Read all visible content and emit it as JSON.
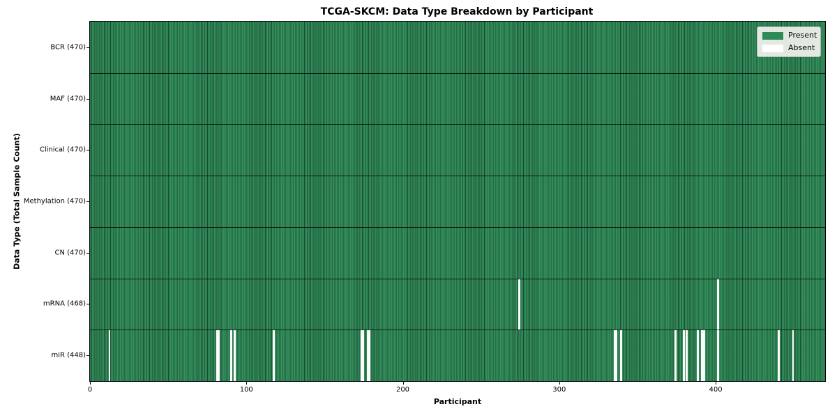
{
  "title": "TCGA-SKCM: Data Type Breakdown by Participant",
  "chart_data": {
    "type": "heatmap",
    "title": "TCGA-SKCM: Data Type Breakdown by Participant",
    "xlabel": "Participant",
    "ylabel": "Data Type (Total Sample Count)",
    "n_participants": 470,
    "x_ticks": [
      0,
      100,
      200,
      300,
      400
    ],
    "grid": false,
    "legend_position": "upper right",
    "legend": [
      {
        "label": "Present",
        "color": "#2e8b57"
      },
      {
        "label": "Absent",
        "color": "#ffffff"
      }
    ],
    "colors": {
      "present": "#2e8b57",
      "absent": "#fbfbfb",
      "cell_edge": "rgba(0,0,0,0.45)",
      "row_separator": "#0a0f0a"
    },
    "rows": [
      {
        "label": "BCR (470)",
        "data_type": "BCR",
        "present_count": 470,
        "absent_participants": []
      },
      {
        "label": "MAF (470)",
        "data_type": "MAF",
        "present_count": 470,
        "absent_participants": []
      },
      {
        "label": "Clinical (470)",
        "data_type": "Clinical",
        "present_count": 470,
        "absent_participants": []
      },
      {
        "label": "Methylation (470)",
        "data_type": "Methylation",
        "present_count": 470,
        "absent_participants": []
      },
      {
        "label": "CN (470)",
        "data_type": "CN",
        "present_count": 470,
        "absent_participants": []
      },
      {
        "label": "mRNA (468)",
        "data_type": "mRNA",
        "present_count": 468,
        "absent_participants": [
          274,
          401
        ]
      },
      {
        "label": "miR (448)",
        "data_type": "miR",
        "present_count": 448,
        "absent_participants": [
          12,
          81,
          82,
          90,
          92,
          117,
          173,
          174,
          177,
          178,
          335,
          336,
          339,
          374,
          379,
          381,
          388,
          391,
          392,
          401,
          440,
          449
        ]
      }
    ]
  }
}
